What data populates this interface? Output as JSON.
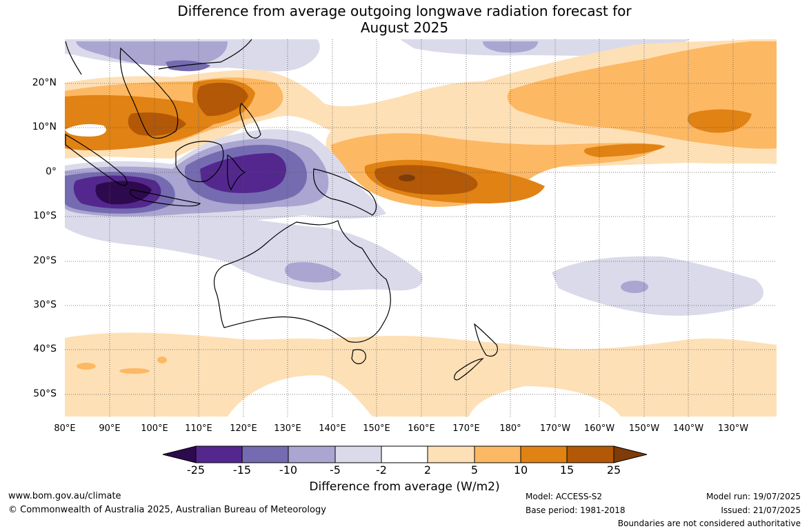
{
  "title": {
    "line1": "Difference from average outgoing longwave radiation forecast for",
    "line2": "August 2025"
  },
  "axes": {
    "lat_labels": [
      "20°N",
      "10°N",
      "0°",
      "10°S",
      "20°S",
      "30°S",
      "40°S",
      "50°S"
    ],
    "lon_labels": [
      "80°E",
      "90°E",
      "100°E",
      "110°E",
      "120°E",
      "130°E",
      "140°E",
      "150°E",
      "160°E",
      "170°E",
      "180°",
      "170°W",
      "160°W",
      "150°W",
      "140°W",
      "130°W"
    ]
  },
  "colorbar": {
    "title": "Difference from average (W/m2)",
    "ticks": [
      "-25",
      "-15",
      "-10",
      "-5",
      "-2",
      "2",
      "5",
      "10",
      "15",
      "25"
    ],
    "colors": [
      "#2d0a4e",
      "#54278f",
      "#756bb1",
      "#aaa5d1",
      "#dadaeb",
      "#ffffff",
      "#fee0b6",
      "#fdb863",
      "#e08214",
      "#b35806",
      "#7f3b08"
    ]
  },
  "footer": {
    "site": "www.bom.gov.au/climate",
    "copyright": "© Commonwealth of Australia 2025, Australian Bureau of Meteorology",
    "model": "Model: ACCESS-S2",
    "base_period": "Base period: 1981-2018",
    "model_run": "Model run: 19/07/2025",
    "issued": "Issued: 21/07/2025",
    "disclaimer": "Boundaries are not considered authoritative"
  }
}
